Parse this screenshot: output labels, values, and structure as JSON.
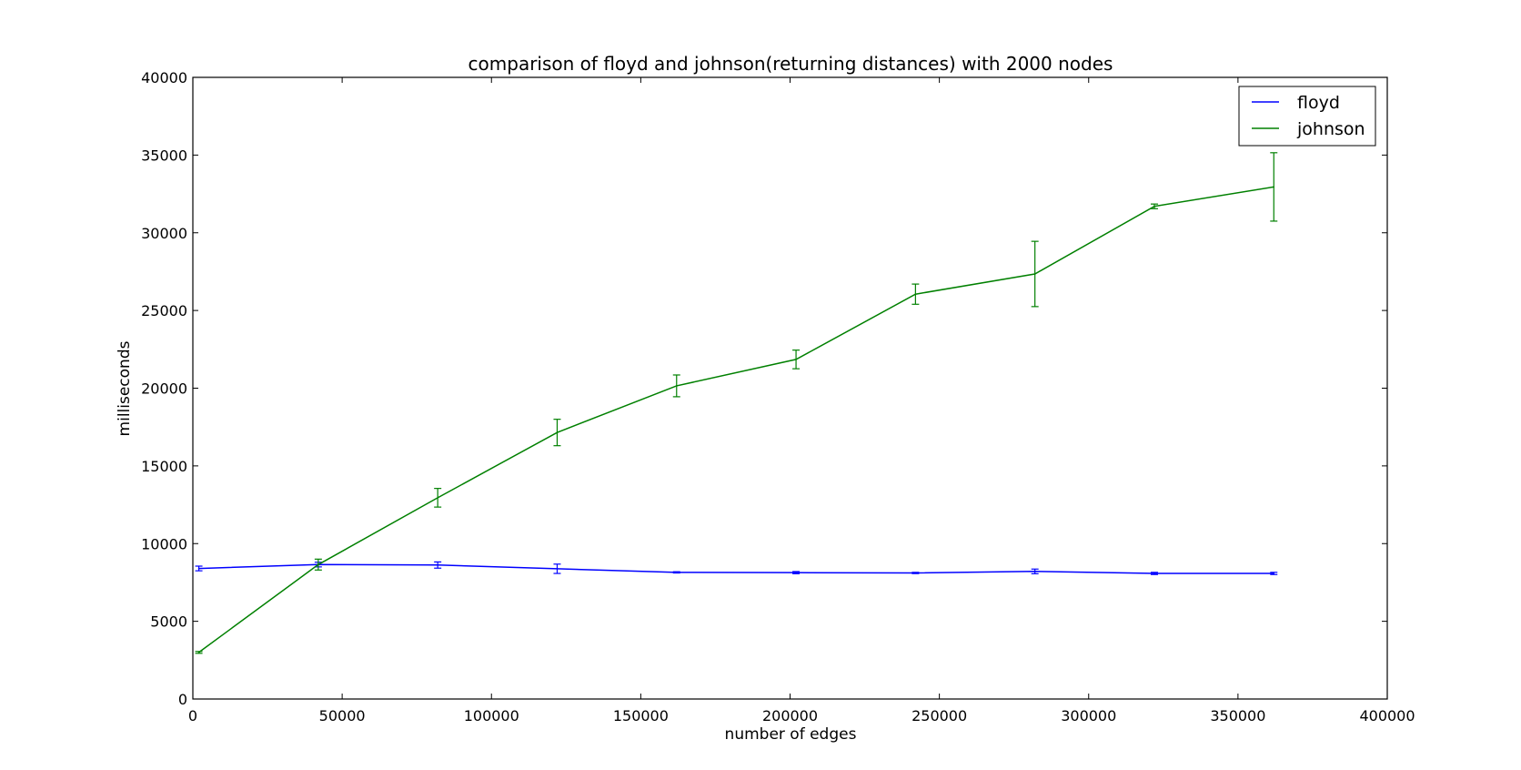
{
  "chart_data": {
    "type": "line",
    "title": "comparison of floyd and johnson(returning distances) with 2000 nodes",
    "xlabel": "number of edges",
    "ylabel": "milliseconds",
    "xlim": [
      0,
      400000
    ],
    "ylim": [
      0,
      40000
    ],
    "xticks": [
      0,
      50000,
      100000,
      150000,
      200000,
      250000,
      300000,
      350000,
      400000
    ],
    "yticks": [
      0,
      5000,
      10000,
      15000,
      20000,
      25000,
      30000,
      35000,
      40000
    ],
    "grid": false,
    "legend_position": "top-right",
    "x": [
      2000,
      42000,
      82000,
      122000,
      162000,
      202000,
      242000,
      282000,
      322000,
      362000
    ],
    "series": [
      {
        "name": "floyd",
        "color": "#0000ff",
        "values": [
          8400,
          8650,
          8620,
          8380,
          8150,
          8130,
          8110,
          8210,
          8080,
          8080
        ],
        "errors": [
          150,
          150,
          200,
          300,
          40,
          70,
          40,
          150,
          70,
          70
        ]
      },
      {
        "name": "johnson",
        "color": "#008000",
        "values": [
          3000,
          8650,
          12950,
          17150,
          20150,
          21850,
          26050,
          27350,
          31700,
          32950
        ],
        "errors": [
          60,
          350,
          600,
          850,
          700,
          600,
          650,
          2100,
          150,
          2200
        ]
      }
    ]
  }
}
